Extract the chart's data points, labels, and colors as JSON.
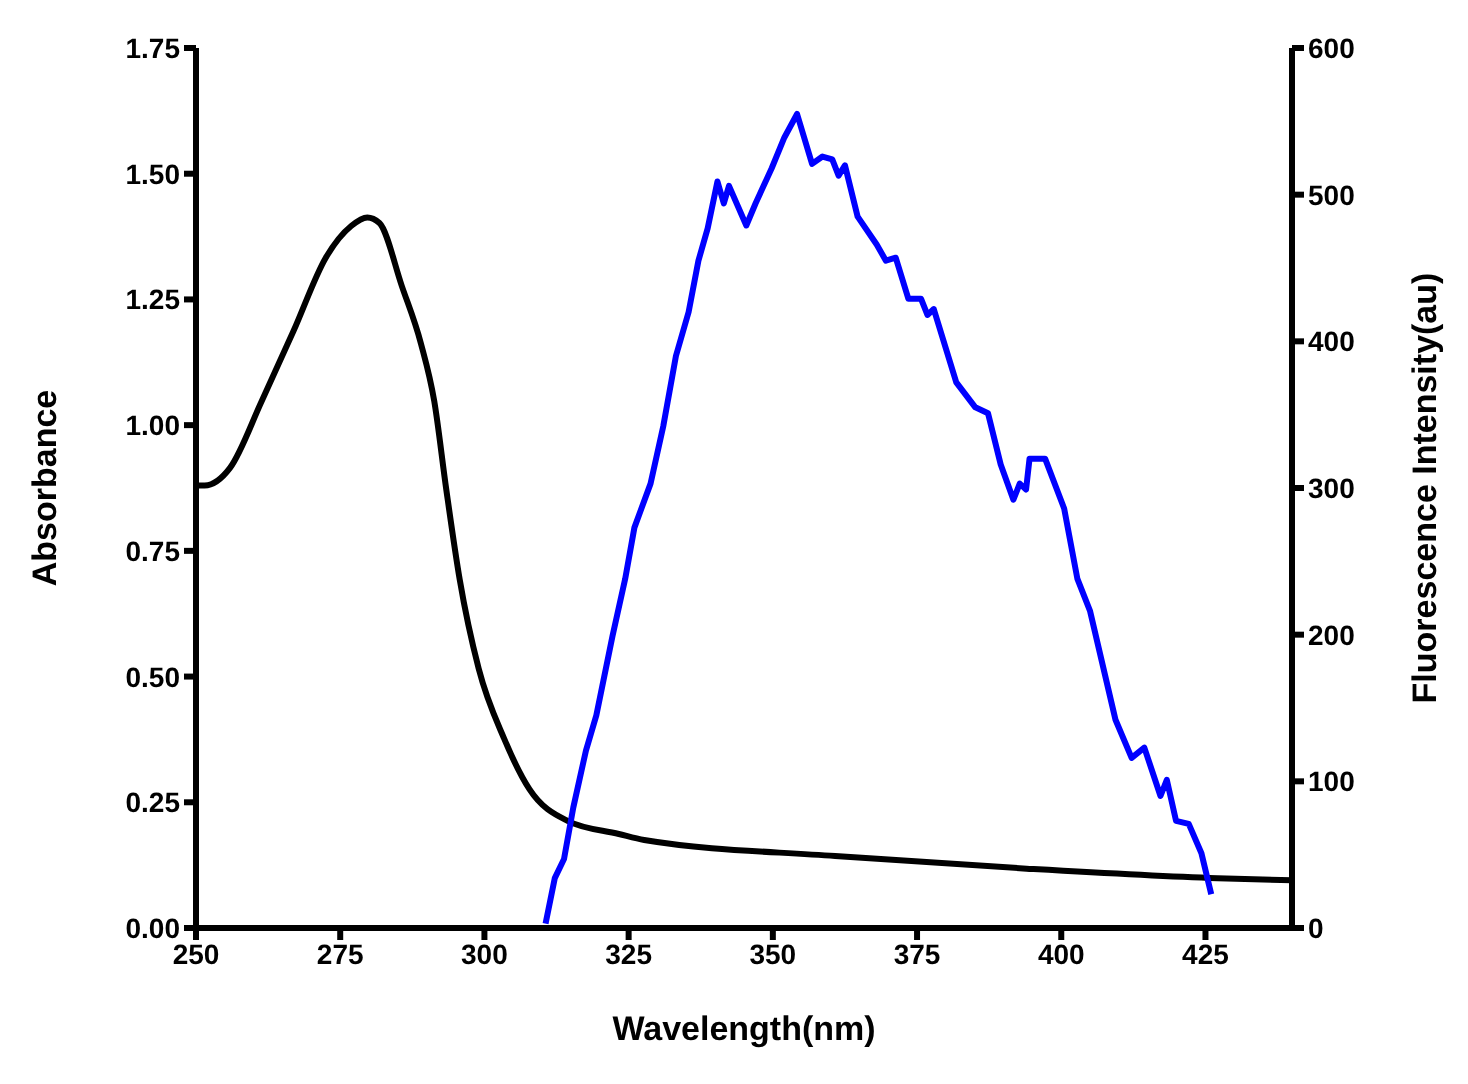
{
  "chart_data": {
    "type": "line",
    "xlabel": "Wavelength(nm)",
    "ylabel": "Absorbance",
    "y2label": "Fluorescence Intensity(au)",
    "xlim": [
      250,
      440
    ],
    "xticks": [
      250,
      275,
      300,
      325,
      350,
      375,
      400,
      425
    ],
    "ylim": [
      0,
      1.75
    ],
    "yticks": [
      {
        "value": 0,
        "label": "0.00"
      },
      {
        "value": 0.25,
        "label": "0.25"
      },
      {
        "value": 0.5,
        "label": "0.50"
      },
      {
        "value": 0.75,
        "label": "0.75"
      },
      {
        "value": 1,
        "label": "1.00"
      },
      {
        "value": 1.25,
        "label": "1.25"
      },
      {
        "value": 1.5,
        "label": "1.50"
      },
      {
        "value": 1.75,
        "label": "1.75"
      }
    ],
    "y2lim": [
      0,
      600
    ],
    "y2ticks": [
      0,
      100,
      200,
      300,
      400,
      500,
      600
    ],
    "marker": "none",
    "line_style": "solid",
    "series": [
      {
        "color": "#000000",
        "x": [
          250,
          251.5,
          255.9,
          261.4,
          266.9,
          272.5,
          276.9,
          279.7,
          281.8,
          285.7,
          289,
          291.3,
          293.4,
          295.7,
          299,
          303.4,
          307.8,
          314.4,
          323.3,
          327.7,
          360.8,
          394,
          427.1,
          440
        ],
        "values": [
          0.88,
          0.88,
          0.915,
          1.048,
          1.187,
          1.333,
          1.396,
          1.413,
          1.402,
          1.276,
          1.162,
          1.048,
          0.871,
          0.694,
          0.516,
          0.377,
          0.276,
          0.213,
          0.187,
          0.175,
          0.143,
          0.118,
          0.099,
          0.095
        ]
      },
      {
        "color": "#0000ff",
        "axis": "y2",
        "x": [
          310.6,
          312.2,
          313.8,
          315.4,
          317.6,
          319.4,
          322.2,
          324.4,
          326,
          328.8,
          331,
          333.2,
          335.4,
          337.1,
          338.7,
          340.4,
          341.5,
          342.4,
          345.4,
          347,
          349.8,
          352,
          354.2,
          356.8,
          358.6,
          360.3,
          361.4,
          362.5,
          364.7,
          368,
          369.6,
          371.3,
          373.5,
          375.7,
          376.8,
          377.9,
          381.8,
          385.1,
          387.3,
          389.5,
          391.7,
          392.8,
          393.9,
          394.5,
          397.2,
          400.5,
          402.8,
          405,
          409.4,
          412.2,
          414.4,
          417.2,
          418.3,
          419.9,
          422.1,
          424.3,
          426
        ],
        "values": [
          3,
          34,
          47,
          82,
          121,
          145,
          199,
          238,
          273,
          303,
          342,
          390,
          420,
          455,
          477,
          509,
          494,
          506,
          479,
          494,
          518,
          539,
          555,
          521,
          526,
          524,
          513,
          520,
          485,
          466,
          455,
          457,
          429,
          429,
          418,
          422,
          372,
          355,
          351,
          316,
          292,
          303,
          299,
          320,
          320,
          286,
          238,
          216,
          142,
          116,
          123,
          90,
          101,
          73,
          71,
          51,
          23
        ]
      }
    ]
  }
}
